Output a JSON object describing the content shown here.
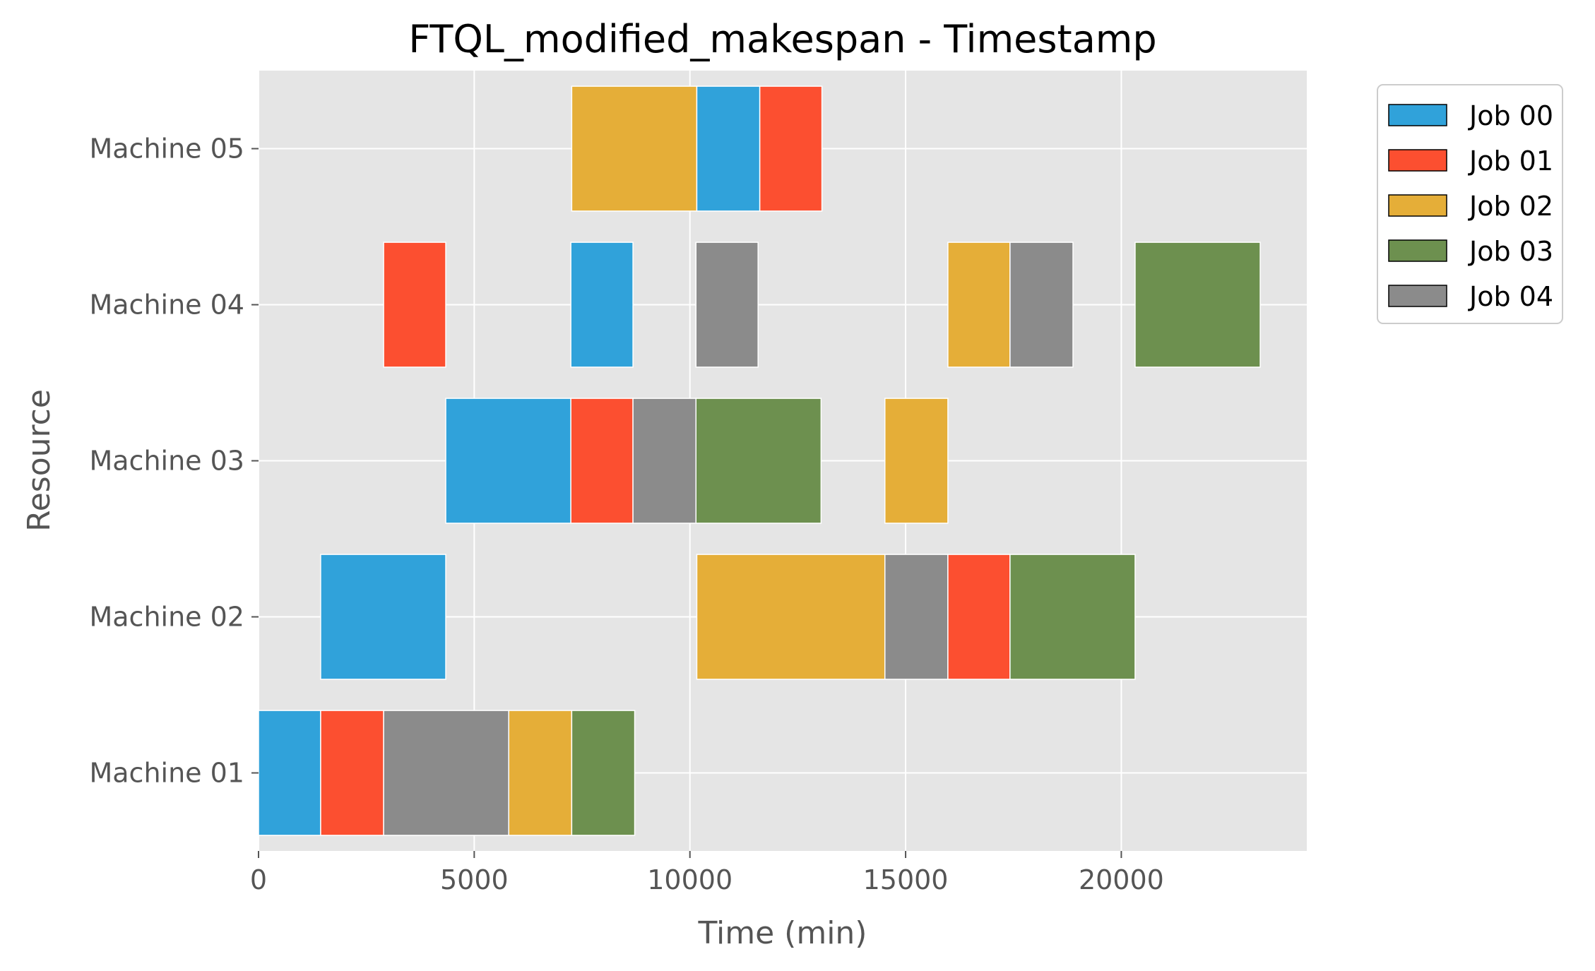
{
  "chart_data": {
    "type": "gantt",
    "title": "FTQL_modified_makespan - Timestamp",
    "xlabel": "Time (min)",
    "ylabel": "Resource",
    "xlim": [
      0,
      24300
    ],
    "x_ticks": [
      "0",
      "5000",
      "10000",
      "15000",
      "20000"
    ],
    "x_tick_values": [
      0,
      5000,
      10000,
      15000,
      20000
    ],
    "resources": [
      "Machine 01",
      "Machine 02",
      "Machine 03",
      "Machine 04",
      "Machine 05"
    ],
    "grid": true,
    "legend_position": "outside-top-right",
    "series": [
      {
        "name": "Job 00",
        "color": "#30a2da"
      },
      {
        "name": "Job 01",
        "color": "#fc4f30"
      },
      {
        "name": "Job 02",
        "color": "#e5ae38"
      },
      {
        "name": "Job 03",
        "color": "#6d904f"
      },
      {
        "name": "Job 04",
        "color": "#8b8b8b"
      }
    ],
    "tasks": [
      {
        "resource": "Machine 01",
        "job": "Job 00",
        "start": 0,
        "end": 1440
      },
      {
        "resource": "Machine 01",
        "job": "Job 01",
        "start": 1440,
        "end": 2900
      },
      {
        "resource": "Machine 01",
        "job": "Job 04",
        "start": 2900,
        "end": 5800
      },
      {
        "resource": "Machine 01",
        "job": "Job 02",
        "start": 5800,
        "end": 7260
      },
      {
        "resource": "Machine 01",
        "job": "Job 03",
        "start": 7260,
        "end": 8720
      },
      {
        "resource": "Machine 02",
        "job": "Job 00",
        "start": 1440,
        "end": 4340
      },
      {
        "resource": "Machine 02",
        "job": "Job 02",
        "start": 10160,
        "end": 14520
      },
      {
        "resource": "Machine 02",
        "job": "Job 04",
        "start": 14520,
        "end": 15980
      },
      {
        "resource": "Machine 02",
        "job": "Job 01",
        "start": 15980,
        "end": 17420
      },
      {
        "resource": "Machine 02",
        "job": "Job 03",
        "start": 17420,
        "end": 20320
      },
      {
        "resource": "Machine 03",
        "job": "Job 00",
        "start": 4340,
        "end": 7240
      },
      {
        "resource": "Machine 03",
        "job": "Job 01",
        "start": 7240,
        "end": 8680
      },
      {
        "resource": "Machine 03",
        "job": "Job 04",
        "start": 8680,
        "end": 10140
      },
      {
        "resource": "Machine 03",
        "job": "Job 03",
        "start": 10140,
        "end": 13040
      },
      {
        "resource": "Machine 03",
        "job": "Job 02",
        "start": 14520,
        "end": 15980
      },
      {
        "resource": "Machine 04",
        "job": "Job 01",
        "start": 2900,
        "end": 4340
      },
      {
        "resource": "Machine 04",
        "job": "Job 00",
        "start": 7240,
        "end": 8680
      },
      {
        "resource": "Machine 04",
        "job": "Job 04",
        "start": 10140,
        "end": 11580
      },
      {
        "resource": "Machine 04",
        "job": "Job 02",
        "start": 15980,
        "end": 17420
      },
      {
        "resource": "Machine 04",
        "job": "Job 04",
        "start": 17420,
        "end": 18880
      },
      {
        "resource": "Machine 04",
        "job": "Job 03",
        "start": 20320,
        "end": 23220
      },
      {
        "resource": "Machine 05",
        "job": "Job 02",
        "start": 7260,
        "end": 10160
      },
      {
        "resource": "Machine 05",
        "job": "Job 00",
        "start": 10160,
        "end": 11620
      },
      {
        "resource": "Machine 05",
        "job": "Job 01",
        "start": 11620,
        "end": 13060
      }
    ]
  }
}
